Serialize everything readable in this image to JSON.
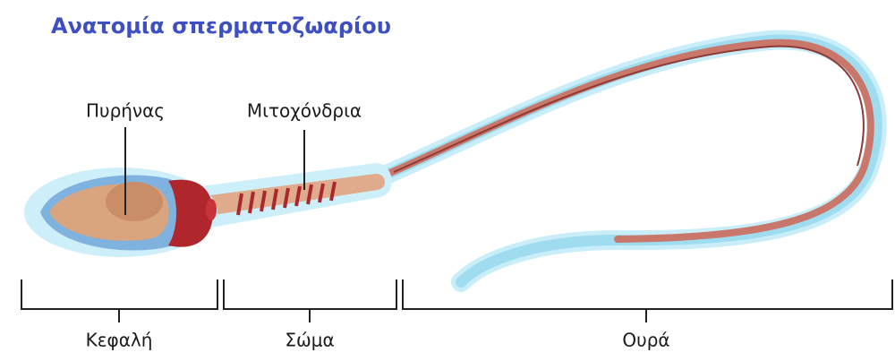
{
  "title": "Ανατομία σπερματοζωαρίου",
  "labels": {
    "nucleus": "Πυρήνας",
    "mitochondria": "Μιτοχόνδρια"
  },
  "sections": {
    "head": "Κεφαλή",
    "body": "Σώμα",
    "tail": "Ουρά"
  }
}
